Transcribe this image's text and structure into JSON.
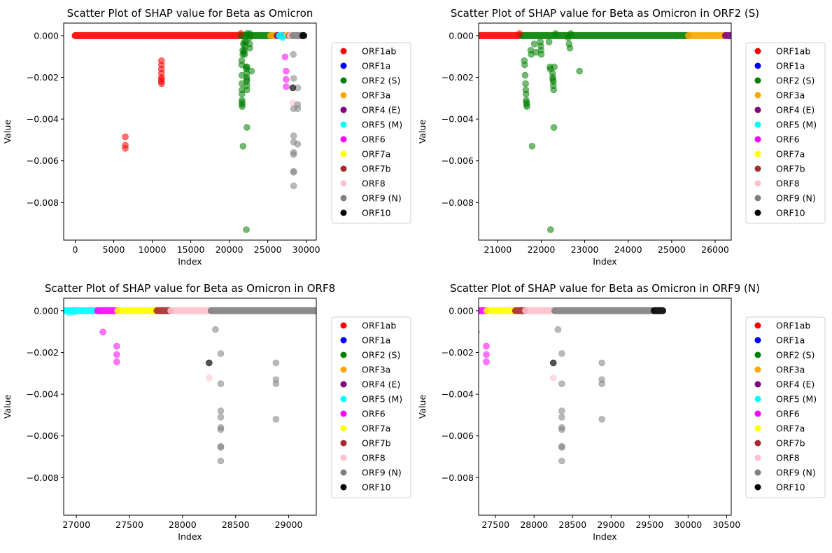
{
  "legend_colors": {
    "ORF1ab": "#ff0000",
    "ORF1a": "#0000ff",
    "ORF2 (S)": "#008000",
    "ORF3a": "#ffa500",
    "ORF4 (E)": "#800080",
    "ORF5 (M)": "#00ffff",
    "ORF6": "#ff00ff",
    "ORF7a": "#ffff00",
    "ORF7b": "#a52a2a",
    "ORF8": "#ffc0cb",
    "ORF9 (N)": "#808080",
    "ORF10": "#000000"
  },
  "chart_data": [
    {
      "type": "scatter",
      "title": "Scatter Plot of SHAP value for Beta as Omicron",
      "xlabel": "Index",
      "ylabel": "Value",
      "xlim": [
        -1500,
        31300
      ],
      "ylim": [
        -0.0098,
        0.0006
      ],
      "xticks": [
        0,
        5000,
        10000,
        15000,
        20000,
        25000,
        30000
      ],
      "xtick_labels": [
        "0",
        "5000",
        "10000",
        "15000",
        "20000",
        "25000",
        "30000"
      ],
      "yticks": [
        0.0,
        -0.002,
        -0.004,
        -0.006,
        -0.008
      ],
      "ytick_labels": [
        "0.000",
        "−0.002",
        "−0.004",
        "−0.006",
        "−0.008"
      ],
      "legend": [
        "ORF1ab",
        "ORF1a",
        "ORF2 (S)",
        "ORF3a",
        "ORF4 (E)",
        "ORF5 (M)",
        "ORF6",
        "ORF7a",
        "ORF7b",
        "ORF8",
        "ORF9 (N)",
        "ORF10"
      ],
      "baseline_bands": [
        {
          "name": "ORF1ab",
          "from": 0,
          "to": 21500
        },
        {
          "name": "ORF2 (S)",
          "from": 21560,
          "to": 25380
        },
        {
          "name": "ORF3a",
          "from": 25390,
          "to": 26200
        },
        {
          "name": "ORF4 (E)",
          "from": 26240,
          "to": 26470
        },
        {
          "name": "ORF5 (M)",
          "from": 26520,
          "to": 27190
        },
        {
          "name": "ORF6",
          "from": 27200,
          "to": 27380
        },
        {
          "name": "ORF7a",
          "from": 27390,
          "to": 27750
        },
        {
          "name": "ORF7b",
          "from": 27760,
          "to": 27880
        },
        {
          "name": "ORF8",
          "from": 27890,
          "to": 28250
        },
        {
          "name": "ORF9 (N)",
          "from": 28270,
          "to": 29530
        },
        {
          "name": "ORF10",
          "from": 29560,
          "to": 29670
        }
      ],
      "points": [
        {
          "s": "ORF1ab",
          "x": 6500,
          "y": -0.00485
        },
        {
          "s": "ORF1ab",
          "x": 6500,
          "y": -0.00525
        },
        {
          "s": "ORF1ab",
          "x": 6500,
          "y": -0.0054
        },
        {
          "s": "ORF1ab",
          "x": 11200,
          "y": -0.0012
        },
        {
          "s": "ORF1ab",
          "x": 11200,
          "y": -0.0014
        },
        {
          "s": "ORF1ab",
          "x": 11200,
          "y": -0.0016
        },
        {
          "s": "ORF1ab",
          "x": 11200,
          "y": -0.0018
        },
        {
          "s": "ORF1ab",
          "x": 11200,
          "y": -0.002
        },
        {
          "s": "ORF1ab",
          "x": 11200,
          "y": -0.0021
        },
        {
          "s": "ORF1ab",
          "x": 11200,
          "y": -0.0022
        },
        {
          "s": "ORF1ab",
          "x": 11200,
          "y": -0.0023
        },
        {
          "s": "ORF1ab",
          "x": 21500,
          "y": 0.0001
        },
        {
          "s": "ORF2 (S)",
          "x": 21610,
          "y": -0.0012
        },
        {
          "s": "ORF2 (S)",
          "x": 21620,
          "y": -0.0014
        },
        {
          "s": "ORF2 (S)",
          "x": 21630,
          "y": -0.0019
        },
        {
          "s": "ORF2 (S)",
          "x": 21640,
          "y": -0.0023
        },
        {
          "s": "ORF2 (S)",
          "x": 21645,
          "y": -0.0026
        },
        {
          "s": "ORF2 (S)",
          "x": 21650,
          "y": -0.0028
        },
        {
          "s": "ORF2 (S)",
          "x": 21655,
          "y": -0.0031
        },
        {
          "s": "ORF2 (S)",
          "x": 21660,
          "y": -0.0032
        },
        {
          "s": "ORF2 (S)",
          "x": 21665,
          "y": -0.0033
        },
        {
          "s": "ORF2 (S)",
          "x": 21670,
          "y": -0.0034
        },
        {
          "s": "ORF2 (S)",
          "x": 21760,
          "y": -0.0007
        },
        {
          "s": "ORF2 (S)",
          "x": 21770,
          "y": -0.0009
        },
        {
          "s": "ORF2 (S)",
          "x": 21790,
          "y": -0.0053
        },
        {
          "s": "ORF2 (S)",
          "x": 21840,
          "y": -0.0004
        },
        {
          "s": "ORF2 (S)",
          "x": 21880,
          "y": -0.0008
        },
        {
          "s": "ORF2 (S)",
          "x": 21980,
          "y": -0.0003
        },
        {
          "s": "ORF2 (S)",
          "x": 21990,
          "y": -0.0005
        },
        {
          "s": "ORF2 (S)",
          "x": 21995,
          "y": -0.0007
        },
        {
          "s": "ORF2 (S)",
          "x": 22000,
          "y": -0.0009
        },
        {
          "s": "ORF2 (S)",
          "x": 22180,
          "y": -0.0003
        },
        {
          "s": "ORF2 (S)",
          "x": 22200,
          "y": -0.0015
        },
        {
          "s": "ORF2 (S)",
          "x": 22210,
          "y": -0.0016
        },
        {
          "s": "ORF2 (S)",
          "x": 22215,
          "y": -0.0093
        },
        {
          "s": "ORF2 (S)",
          "x": 22260,
          "y": -0.0018
        },
        {
          "s": "ORF2 (S)",
          "x": 22265,
          "y": -0.002
        },
        {
          "s": "ORF2 (S)",
          "x": 22270,
          "y": -0.0021
        },
        {
          "s": "ORF2 (S)",
          "x": 22275,
          "y": -0.0022
        },
        {
          "s": "ORF2 (S)",
          "x": 22280,
          "y": -0.0024
        },
        {
          "s": "ORF2 (S)",
          "x": 22285,
          "y": -0.0026
        },
        {
          "s": "ORF2 (S)",
          "x": 22290,
          "y": -0.0044
        },
        {
          "s": "ORF2 (S)",
          "x": 22300,
          "y": -0.0015
        },
        {
          "s": "ORF2 (S)",
          "x": 22330,
          "y": 0.0001
        },
        {
          "s": "ORF2 (S)",
          "x": 22620,
          "y": -0.0001
        },
        {
          "s": "ORF2 (S)",
          "x": 22640,
          "y": -0.0004
        },
        {
          "s": "ORF2 (S)",
          "x": 22660,
          "y": -0.0006
        },
        {
          "s": "ORF2 (S)",
          "x": 22680,
          "y": 0.0001
        },
        {
          "s": "ORF2 (S)",
          "x": 22880,
          "y": -0.0017
        },
        {
          "s": "ORF5 (M)",
          "x": 26930,
          "y": -0.0001
        },
        {
          "s": "ORF5 (M)",
          "x": 26980,
          "y": -5e-05
        },
        {
          "s": "ORF6",
          "x": 27250,
          "y": -0.00102
        },
        {
          "s": "ORF6",
          "x": 27380,
          "y": -0.0017
        },
        {
          "s": "ORF6",
          "x": 27380,
          "y": -0.0021
        },
        {
          "s": "ORF6",
          "x": 27380,
          "y": -0.00245
        },
        {
          "s": "ORF8",
          "x": 28250,
          "y": -0.00322
        },
        {
          "s": "ORF9 (N)",
          "x": 28250,
          "y": -0.0025
        },
        {
          "s": "ORF9 (N)",
          "x": 28310,
          "y": -0.0009
        },
        {
          "s": "ORF9 (N)",
          "x": 28360,
          "y": -0.00205
        },
        {
          "s": "ORF9 (N)",
          "x": 28360,
          "y": -0.0035
        },
        {
          "s": "ORF9 (N)",
          "x": 28360,
          "y": -0.0048
        },
        {
          "s": "ORF9 (N)",
          "x": 28360,
          "y": -0.0051
        },
        {
          "s": "ORF9 (N)",
          "x": 28360,
          "y": -0.0056
        },
        {
          "s": "ORF9 (N)",
          "x": 28360,
          "y": -0.0057
        },
        {
          "s": "ORF9 (N)",
          "x": 28360,
          "y": -0.0065
        },
        {
          "s": "ORF9 (N)",
          "x": 28360,
          "y": -0.00655
        },
        {
          "s": "ORF9 (N)",
          "x": 28360,
          "y": -0.0072
        },
        {
          "s": "ORF9 (N)",
          "x": 28880,
          "y": -0.0025
        },
        {
          "s": "ORF9 (N)",
          "x": 28880,
          "y": -0.0033
        },
        {
          "s": "ORF9 (N)",
          "x": 28880,
          "y": -0.0035
        },
        {
          "s": "ORF9 (N)",
          "x": 28880,
          "y": -0.0052
        },
        {
          "s": "ORF10",
          "x": 28250,
          "y": -0.0025
        }
      ]
    },
    {
      "type": "scatter",
      "title": "Scatter Plot of SHAP value for Beta as Omicron in ORF2 (S)",
      "xlabel": "Index",
      "ylabel": "Value",
      "xlim": [
        20560,
        26370
      ],
      "ylim": [
        -0.0098,
        0.0006
      ],
      "xticks": [
        21000,
        22000,
        23000,
        24000,
        25000,
        26000
      ],
      "xtick_labels": [
        "21000",
        "22000",
        "23000",
        "24000",
        "25000",
        "26000"
      ],
      "yticks": [
        0.0,
        -0.002,
        -0.004,
        -0.006,
        -0.008
      ],
      "ytick_labels": [
        "0.000",
        "−0.002",
        "−0.004",
        "−0.006",
        "−0.008"
      ],
      "legend": [
        "ORF1ab",
        "ORF1a",
        "ORF2 (S)",
        "ORF3a",
        "ORF4 (E)",
        "ORF5 (M)",
        "ORF6",
        "ORF7a",
        "ORF7b",
        "ORF8",
        "ORF9 (N)",
        "ORF10"
      ],
      "baseline_bands": [],
      "points": []
    },
    {
      "type": "scatter",
      "title": "Scatter Plot of SHAP value for Beta as Omicron in ORF8",
      "xlabel": "Index",
      "ylabel": "Value",
      "xlim": [
        26880,
        29260
      ],
      "ylim": [
        -0.0098,
        0.0006
      ],
      "xticks": [
        27000,
        27500,
        28000,
        28500,
        29000
      ],
      "xtick_labels": [
        "27000",
        "27500",
        "28000",
        "28500",
        "29000"
      ],
      "yticks": [
        0.0,
        -0.002,
        -0.004,
        -0.006,
        -0.008
      ],
      "ytick_labels": [
        "0.000",
        "−0.002",
        "−0.004",
        "−0.006",
        "−0.008"
      ],
      "legend": [
        "ORF1ab",
        "ORF1a",
        "ORF2 (S)",
        "ORF3a",
        "ORF4 (E)",
        "ORF5 (M)",
        "ORF6",
        "ORF7a",
        "ORF7b",
        "ORF8",
        "ORF9 (N)",
        "ORF10"
      ],
      "baseline_bands": [],
      "points": []
    },
    {
      "type": "scatter",
      "title": "Scatter Plot of SHAP value for Beta as Omicron in ORF9 (N)",
      "xlabel": "Index",
      "ylabel": "Value",
      "xlim": [
        27280,
        30560
      ],
      "ylim": [
        -0.0098,
        0.0006
      ],
      "xticks": [
        27500,
        28000,
        28500,
        29000,
        29500,
        30000,
        30500
      ],
      "xtick_labels": [
        "27500",
        "28000",
        "28500",
        "29000",
        "29500",
        "30000",
        "30500"
      ],
      "yticks": [
        0.0,
        -0.002,
        -0.004,
        -0.006,
        -0.008
      ],
      "ytick_labels": [
        "0.000",
        "−0.002",
        "−0.004",
        "−0.006",
        "−0.008"
      ],
      "legend": [
        "ORF1ab",
        "ORF1a",
        "ORF2 (S)",
        "ORF3a",
        "ORF4 (E)",
        "ORF5 (M)",
        "ORF6",
        "ORF7a",
        "ORF7b",
        "ORF8",
        "ORF9 (N)",
        "ORF10"
      ],
      "baseline_bands": [],
      "points": []
    }
  ]
}
